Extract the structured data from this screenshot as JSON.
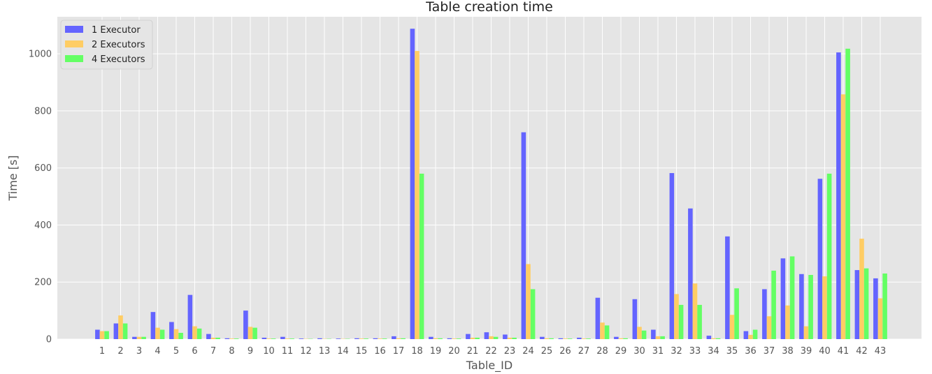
{
  "chart_data": {
    "type": "bar",
    "title": "Table creation time",
    "xlabel": "Table_ID",
    "ylabel": "Time [s]",
    "ylim": [
      0,
      1130
    ],
    "yticks": [
      0,
      200,
      400,
      600,
      800,
      1000
    ],
    "grid": true,
    "legend_position": "top-left",
    "categories": [
      "1",
      "2",
      "3",
      "4",
      "5",
      "6",
      "7",
      "8",
      "9",
      "10",
      "11",
      "12",
      "13",
      "14",
      "15",
      "16",
      "17",
      "18",
      "19",
      "20",
      "21",
      "22",
      "23",
      "24",
      "25",
      "26",
      "27",
      "28",
      "29",
      "30",
      "31",
      "32",
      "33",
      "34",
      "35",
      "36",
      "37",
      "38",
      "39",
      "40",
      "41",
      "42",
      "43"
    ],
    "series": [
      {
        "name": "1 Executor",
        "color": "#6464ff",
        "values": [
          33,
          55,
          8,
          95,
          60,
          155,
          18,
          3,
          100,
          5,
          8,
          2,
          3,
          2,
          3,
          3,
          10,
          1088,
          8,
          3,
          18,
          24,
          16,
          725,
          8,
          3,
          5,
          145,
          8,
          140,
          33,
          582,
          458,
          12,
          360,
          28,
          175,
          283,
          228,
          562,
          1005,
          242,
          213
        ]
      },
      {
        "name": "2 Executors",
        "color": "#ffcd64",
        "values": [
          28,
          83,
          8,
          40,
          35,
          45,
          5,
          2,
          43,
          2,
          2,
          1,
          1,
          1,
          2,
          2,
          3,
          1010,
          3,
          2,
          5,
          10,
          5,
          263,
          3,
          2,
          2,
          58,
          3,
          43,
          10,
          158,
          195,
          3,
          85,
          15,
          80,
          118,
          45,
          220,
          858,
          352,
          143
        ]
      },
      {
        "name": "4 Executors",
        "color": "#64ff64",
        "values": [
          28,
          55,
          8,
          33,
          22,
          37,
          5,
          2,
          40,
          2,
          2,
          1,
          1,
          1,
          2,
          2,
          3,
          580,
          3,
          2,
          5,
          8,
          5,
          175,
          3,
          2,
          2,
          48,
          3,
          30,
          10,
          120,
          120,
          3,
          178,
          33,
          240,
          290,
          225,
          580,
          1018,
          248,
          230
        ]
      }
    ]
  }
}
